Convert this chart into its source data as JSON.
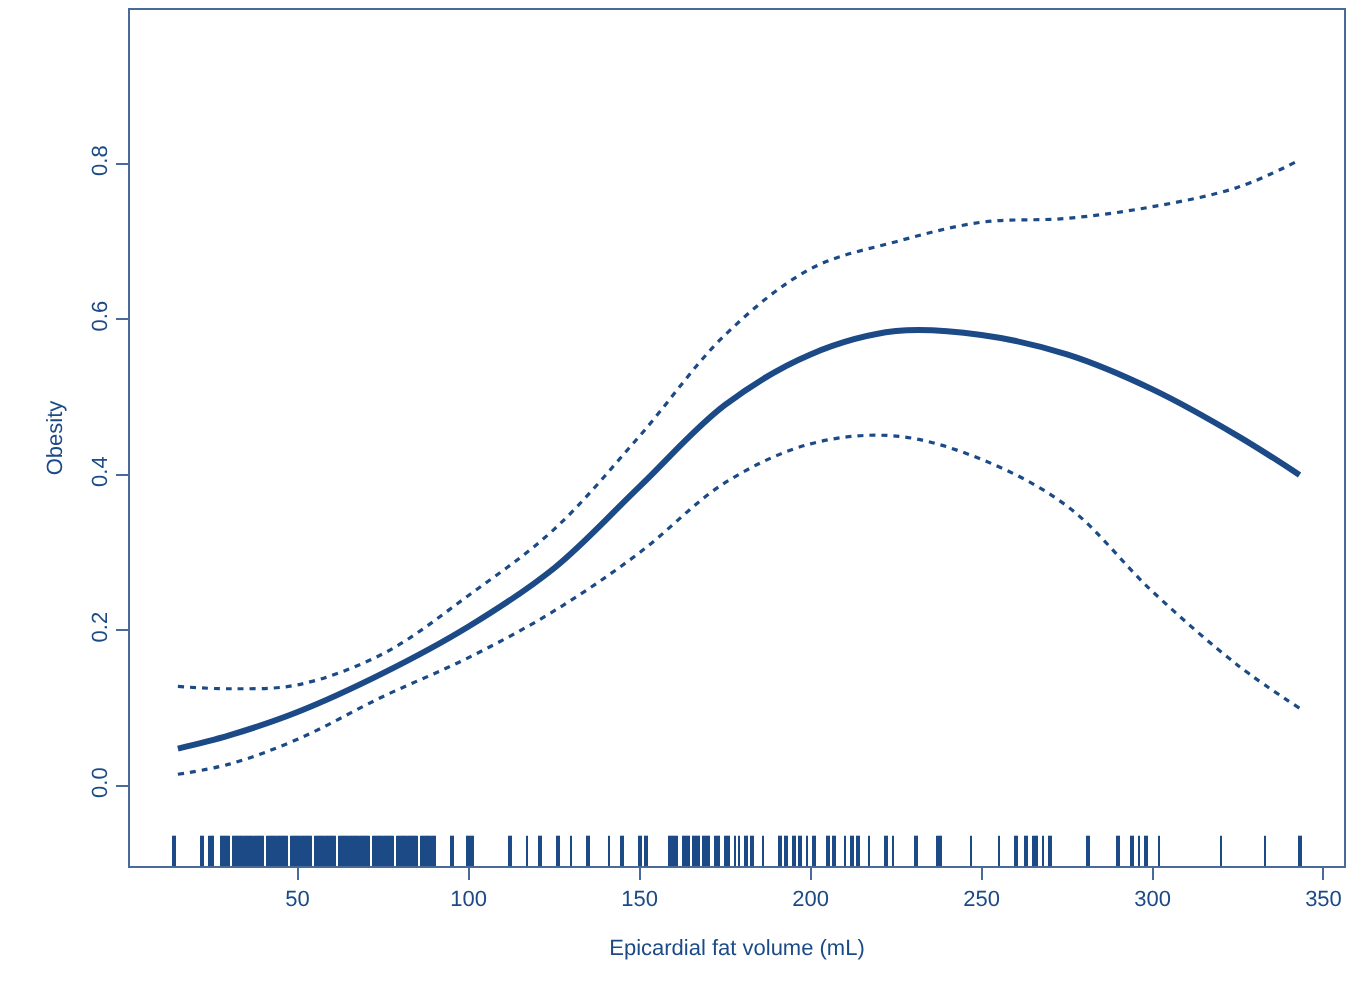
{
  "chart_data": {
    "type": "line",
    "xlabel": "Epicardial fat volume (mL)",
    "ylabel": "Obesity",
    "xlim": [
      1,
      356
    ],
    "xticks": [
      50,
      100,
      150,
      200,
      250,
      300,
      350
    ],
    "ylim": [
      -0.103,
      0.998
    ],
    "yticks": [
      {
        "value": 0,
        "label": "0.0"
      },
      0.2,
      0.4,
      0.6,
      0.8
    ],
    "series": [
      {
        "line_style": "solid",
        "color": "#1b4a86",
        "x": [
          15,
          30,
          50,
          75,
          100,
          125,
          150,
          175,
          200,
          225,
          250,
          275,
          300,
          325,
          343
        ],
        "values": [
          0.048,
          0.065,
          0.095,
          0.145,
          0.205,
          0.28,
          0.385,
          0.49,
          0.555,
          0.585,
          0.58,
          0.555,
          0.51,
          0.45,
          0.4
        ]
      },
      {
        "line_style": "dotted",
        "color": "#1b4a86",
        "x": [
          15,
          30,
          50,
          75,
          100,
          125,
          150,
          175,
          200,
          225,
          250,
          275,
          300,
          325,
          343
        ],
        "values": [
          0.128,
          0.125,
          0.13,
          0.17,
          0.245,
          0.33,
          0.45,
          0.58,
          0.665,
          0.7,
          0.725,
          0.73,
          0.745,
          0.77,
          0.805
        ]
      },
      {
        "line_style": "dotted",
        "color": "#1b4a86",
        "x": [
          15,
          30,
          50,
          75,
          100,
          125,
          150,
          175,
          200,
          225,
          250,
          275,
          300,
          325,
          343
        ],
        "values": [
          0.015,
          0.028,
          0.06,
          0.115,
          0.165,
          0.225,
          0.3,
          0.39,
          0.44,
          0.45,
          0.42,
          0.36,
          0.25,
          0.155,
          0.1
        ]
      },
      {
        "type": "bar",
        "base": [
          -0.103,
          -0.103,
          -0.103,
          -0.103,
          -0.103,
          -0.103,
          -0.103,
          -0.103,
          -0.103,
          -0.103,
          -0.103,
          -0.103,
          -0.103,
          -0.103,
          -0.103,
          -0.103,
          -0.103,
          -0.103,
          -0.103,
          -0.103,
          -0.103,
          -0.103,
          -0.103,
          -0.103,
          -0.103,
          -0.103,
          -0.103,
          -0.103,
          -0.103,
          -0.103,
          -0.103,
          -0.103,
          -0.103,
          -0.103,
          -0.103,
          -0.103,
          -0.103,
          -0.103,
          -0.103,
          -0.103,
          -0.103,
          -0.103,
          -0.103,
          -0.103,
          -0.103,
          -0.103,
          -0.103,
          -0.103,
          -0.103,
          -0.103,
          -0.103,
          -0.103,
          -0.103,
          -0.103,
          -0.103,
          -0.103,
          -0.103,
          -0.103,
          -0.103,
          -0.103,
          -0.103,
          -0.103,
          -0.103,
          -0.103,
          -0.103,
          -0.103,
          -0.103,
          -0.103,
          -0.103,
          -0.103,
          -0.103,
          -0.103,
          -0.103,
          -0.103,
          -0.103,
          -0.103,
          -0.103,
          -0.103,
          -0.103,
          -0.103,
          -0.103,
          -0.103,
          -0.103,
          -0.103,
          -0.103,
          -0.103,
          -0.103,
          -0.103,
          -0.103,
          -0.103,
          -0.103,
          -0.103,
          -0.103,
          -0.103,
          -0.103,
          -0.103,
          -0.103,
          -0.103,
          -0.103,
          -0.103,
          -0.103,
          -0.103,
          -0.103,
          -0.103,
          -0.103,
          -0.103,
          -0.103,
          -0.103,
          -0.103,
          -0.103,
          -0.103,
          -0.103,
          -0.103,
          -0.103,
          -0.103,
          -0.103,
          -0.103,
          -0.103,
          -0.103,
          -0.103,
          -0.103,
          -0.103,
          -0.103,
          -0.103,
          -0.103,
          -0.103,
          -0.103,
          -0.103,
          -0.103,
          -0.103,
          -0.103,
          -0.103
        ],
        "color": "#1b4a86",
        "x": [
          14,
          22,
          24,
          25,
          28,
          29,
          30,
          31,
          32,
          33,
          34,
          35,
          36,
          37,
          38,
          39,
          40,
          41,
          42,
          43,
          44,
          45,
          46,
          47,
          48,
          49,
          50,
          51,
          52,
          53,
          54,
          55,
          56,
          57,
          58,
          59,
          60,
          61,
          62,
          63,
          64,
          65,
          66,
          67,
          68,
          69,
          70,
          71,
          72,
          73,
          74,
          75,
          76,
          77,
          78,
          79,
          80,
          81,
          82,
          83,
          84,
          85,
          86,
          87,
          88,
          89,
          90,
          95,
          100,
          101,
          112,
          117,
          121,
          126,
          130,
          135,
          141,
          145,
          150,
          152,
          159,
          160,
          161,
          163,
          164,
          166,
          167,
          169,
          170,
          172,
          173,
          175,
          176,
          178,
          179,
          181,
          183,
          186,
          191,
          193,
          195,
          197,
          199,
          201,
          205,
          207,
          210,
          212,
          214,
          217,
          222,
          224,
          231,
          237,
          238,
          247,
          255,
          260,
          263,
          265,
          266,
          268,
          270,
          281,
          290,
          294,
          296,
          298,
          302,
          320,
          333,
          343
        ],
        "values": [
          0.039,
          0.039,
          0.039,
          0.039,
          0.039,
          0.039,
          0.039,
          0.039,
          0.039,
          0.039,
          0.039,
          0.039,
          0.039,
          0.039,
          0.039,
          0.039,
          0.039,
          0.039,
          0.039,
          0.039,
          0.039,
          0.039,
          0.039,
          0.039,
          0.039,
          0.039,
          0.039,
          0.039,
          0.039,
          0.039,
          0.039,
          0.039,
          0.039,
          0.039,
          0.039,
          0.039,
          0.039,
          0.039,
          0.039,
          0.039,
          0.039,
          0.039,
          0.039,
          0.039,
          0.039,
          0.039,
          0.039,
          0.039,
          0.039,
          0.039,
          0.039,
          0.039,
          0.039,
          0.039,
          0.039,
          0.039,
          0.039,
          0.039,
          0.039,
          0.039,
          0.039,
          0.039,
          0.039,
          0.039,
          0.039,
          0.039,
          0.039,
          0.039,
          0.039,
          0.039,
          0.039,
          0.039,
          0.039,
          0.039,
          0.039,
          0.039,
          0.039,
          0.039,
          0.039,
          0.039,
          0.039,
          0.039,
          0.039,
          0.039,
          0.039,
          0.039,
          0.039,
          0.039,
          0.039,
          0.039,
          0.039,
          0.039,
          0.039,
          0.039,
          0.039,
          0.039,
          0.039,
          0.039,
          0.039,
          0.039,
          0.039,
          0.039,
          0.039,
          0.039,
          0.039,
          0.039,
          0.039,
          0.039,
          0.039,
          0.039,
          0.039,
          0.039,
          0.039,
          0.039,
          0.039,
          0.039,
          0.039,
          0.039,
          0.039,
          0.039,
          0.039,
          0.039,
          0.039,
          0.039,
          0.039,
          0.039,
          0.039,
          0.039,
          0.039,
          0.039,
          0.039,
          0.039
        ]
      }
    ]
  }
}
